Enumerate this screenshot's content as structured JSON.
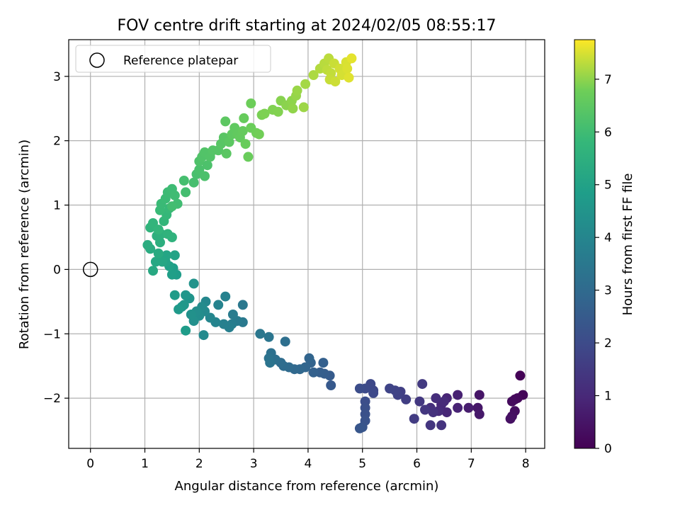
{
  "chart_data": {
    "type": "scatter",
    "title": "FOV centre drift starting at 2024/02/05 08:55:17",
    "xlabel": "Angular distance from reference (arcmin)",
    "ylabel": "Rotation from reference (arcmin)",
    "xlim": [
      -0.4,
      8.35
    ],
    "ylim": [
      -2.78,
      3.57
    ],
    "xticks": [
      "0",
      "1",
      "2",
      "3",
      "4",
      "5",
      "6",
      "7",
      "8"
    ],
    "yticks": [
      "−2",
      "−1",
      "0",
      "1",
      "2",
      "3"
    ],
    "grid": true,
    "legend": {
      "position": "top-left",
      "entries": [
        "Reference platepar"
      ]
    },
    "reference_point": {
      "x": 0,
      "y": 0
    },
    "colorbar": {
      "label": "Hours from first FF file",
      "range": [
        0,
        7.75
      ],
      "ticks": [
        "0",
        "1",
        "2",
        "3",
        "4",
        "5",
        "6",
        "7"
      ],
      "colormap": "viridis"
    },
    "points": [
      {
        "x": 7.9,
        "y": -1.65,
        "t": 0.05
      },
      {
        "x": 7.95,
        "y": -1.95,
        "t": 0.1
      },
      {
        "x": 7.85,
        "y": -2.0,
        "t": 0.15
      },
      {
        "x": 7.8,
        "y": -2.02,
        "t": 0.2
      },
      {
        "x": 7.75,
        "y": -2.05,
        "t": 0.25
      },
      {
        "x": 7.8,
        "y": -2.2,
        "t": 0.3
      },
      {
        "x": 7.75,
        "y": -2.28,
        "t": 0.35
      },
      {
        "x": 7.72,
        "y": -2.32,
        "t": 0.4
      },
      {
        "x": 7.15,
        "y": -1.95,
        "t": 0.5
      },
      {
        "x": 7.12,
        "y": -2.15,
        "t": 0.55
      },
      {
        "x": 7.15,
        "y": -2.25,
        "t": 0.6
      },
      {
        "x": 6.95,
        "y": -2.15,
        "t": 0.7
      },
      {
        "x": 6.75,
        "y": -1.95,
        "t": 0.8
      },
      {
        "x": 6.75,
        "y": -2.15,
        "t": 0.85
      },
      {
        "x": 6.55,
        "y": -2.0,
        "t": 0.9
      },
      {
        "x": 6.55,
        "y": -2.22,
        "t": 0.95
      },
      {
        "x": 6.45,
        "y": -2.1,
        "t": 1.0
      },
      {
        "x": 6.5,
        "y": -2.05,
        "t": 1.05
      },
      {
        "x": 6.4,
        "y": -2.2,
        "t": 1.1
      },
      {
        "x": 6.35,
        "y": -2.0,
        "t": 1.15
      },
      {
        "x": 6.25,
        "y": -2.15,
        "t": 1.2
      },
      {
        "x": 6.3,
        "y": -2.22,
        "t": 1.25
      },
      {
        "x": 6.45,
        "y": -2.42,
        "t": 1.3
      },
      {
        "x": 6.25,
        "y": -2.42,
        "t": 1.35
      },
      {
        "x": 6.15,
        "y": -2.18,
        "t": 1.4
      },
      {
        "x": 6.05,
        "y": -2.05,
        "t": 1.45
      },
      {
        "x": 6.1,
        "y": -1.78,
        "t": 1.5
      },
      {
        "x": 5.95,
        "y": -2.32,
        "t": 1.55
      },
      {
        "x": 5.8,
        "y": -2.02,
        "t": 1.6
      },
      {
        "x": 5.7,
        "y": -1.9,
        "t": 1.65
      },
      {
        "x": 5.65,
        "y": -1.95,
        "t": 1.7
      },
      {
        "x": 5.6,
        "y": -1.88,
        "t": 1.75
      },
      {
        "x": 5.5,
        "y": -1.85,
        "t": 1.8
      },
      {
        "x": 5.2,
        "y": -1.88,
        "t": 1.85
      },
      {
        "x": 5.15,
        "y": -1.78,
        "t": 1.9
      },
      {
        "x": 5.2,
        "y": -1.92,
        "t": 1.95
      },
      {
        "x": 5.05,
        "y": -1.85,
        "t": 2.0
      },
      {
        "x": 4.95,
        "y": -1.85,
        "t": 2.05
      },
      {
        "x": 5.05,
        "y": -2.05,
        "t": 2.1
      },
      {
        "x": 5.05,
        "y": -2.15,
        "t": 2.15
      },
      {
        "x": 5.05,
        "y": -2.25,
        "t": 2.2
      },
      {
        "x": 5.05,
        "y": -2.35,
        "t": 2.25
      },
      {
        "x": 5.0,
        "y": -2.45,
        "t": 2.3
      },
      {
        "x": 4.95,
        "y": -2.47,
        "t": 2.35
      },
      {
        "x": 4.42,
        "y": -1.8,
        "t": 2.45
      },
      {
        "x": 4.4,
        "y": -1.65,
        "t": 2.5
      },
      {
        "x": 4.3,
        "y": -1.62,
        "t": 2.55
      },
      {
        "x": 4.22,
        "y": -1.6,
        "t": 2.6
      },
      {
        "x": 4.28,
        "y": -1.45,
        "t": 2.65
      },
      {
        "x": 4.1,
        "y": -1.6,
        "t": 2.7
      },
      {
        "x": 4.05,
        "y": -1.45,
        "t": 2.75
      },
      {
        "x": 4.02,
        "y": -1.38,
        "t": 2.8
      },
      {
        "x": 3.95,
        "y": -1.52,
        "t": 2.85
      },
      {
        "x": 3.85,
        "y": -1.55,
        "t": 2.9
      },
      {
        "x": 3.75,
        "y": -1.55,
        "t": 2.95
      },
      {
        "x": 3.65,
        "y": -1.52,
        "t": 3.0
      },
      {
        "x": 3.55,
        "y": -1.5,
        "t": 3.05
      },
      {
        "x": 3.5,
        "y": -1.45,
        "t": 3.1
      },
      {
        "x": 3.58,
        "y": -1.12,
        "t": 3.15
      },
      {
        "x": 3.4,
        "y": -1.4,
        "t": 3.2
      },
      {
        "x": 3.32,
        "y": -1.3,
        "t": 3.25
      },
      {
        "x": 3.28,
        "y": -1.38,
        "t": 3.3
      },
      {
        "x": 3.3,
        "y": -1.45,
        "t": 3.35
      },
      {
        "x": 3.28,
        "y": -1.05,
        "t": 3.4
      },
      {
        "x": 3.12,
        "y": -1.0,
        "t": 3.45
      },
      {
        "x": 2.8,
        "y": -0.55,
        "t": 3.5
      },
      {
        "x": 2.8,
        "y": -0.82,
        "t": 3.55
      },
      {
        "x": 2.7,
        "y": -0.8,
        "t": 3.6
      },
      {
        "x": 2.62,
        "y": -0.7,
        "t": 3.65
      },
      {
        "x": 2.6,
        "y": -0.85,
        "t": 3.7
      },
      {
        "x": 2.55,
        "y": -0.9,
        "t": 3.75
      },
      {
        "x": 2.45,
        "y": -0.85,
        "t": 3.8
      },
      {
        "x": 2.48,
        "y": -0.42,
        "t": 3.85
      },
      {
        "x": 2.35,
        "y": -0.55,
        "t": 3.9
      },
      {
        "x": 2.3,
        "y": -0.82,
        "t": 3.95
      },
      {
        "x": 2.2,
        "y": -0.75,
        "t": 4.0
      },
      {
        "x": 2.12,
        "y": -0.5,
        "t": 4.05
      },
      {
        "x": 2.1,
        "y": -0.65,
        "t": 4.1
      },
      {
        "x": 2.08,
        "y": -1.02,
        "t": 4.15
      },
      {
        "x": 2.05,
        "y": -0.58,
        "t": 4.2
      },
      {
        "x": 2.0,
        "y": -0.72,
        "t": 4.25
      },
      {
        "x": 1.95,
        "y": -0.65,
        "t": 4.3
      },
      {
        "x": 1.9,
        "y": -0.8,
        "t": 4.35
      },
      {
        "x": 1.85,
        "y": -0.7,
        "t": 4.4
      },
      {
        "x": 1.9,
        "y": -0.22,
        "t": 4.45
      },
      {
        "x": 1.82,
        "y": -0.45,
        "t": 4.5
      },
      {
        "x": 1.75,
        "y": -0.4,
        "t": 4.55
      },
      {
        "x": 1.72,
        "y": -0.55,
        "t": 4.6
      },
      {
        "x": 1.68,
        "y": -0.58,
        "t": 4.65
      },
      {
        "x": 1.62,
        "y": -0.62,
        "t": 4.7
      },
      {
        "x": 1.55,
        "y": -0.4,
        "t": 4.75
      },
      {
        "x": 1.75,
        "y": -0.95,
        "t": 4.78
      },
      {
        "x": 1.58,
        "y": -0.08,
        "t": 4.8
      },
      {
        "x": 1.52,
        "y": 0.02,
        "t": 4.85
      },
      {
        "x": 1.5,
        "y": -0.08,
        "t": 4.9
      },
      {
        "x": 1.45,
        "y": 0.05,
        "t": 4.95
      },
      {
        "x": 1.55,
        "y": 0.22,
        "t": 5.0
      },
      {
        "x": 1.38,
        "y": 0.12,
        "t": 5.05
      },
      {
        "x": 1.4,
        "y": 0.22,
        "t": 5.1
      },
      {
        "x": 1.32,
        "y": 0.12,
        "t": 5.15
      },
      {
        "x": 1.2,
        "y": 0.12,
        "t": 5.2
      },
      {
        "x": 1.15,
        "y": -0.02,
        "t": 5.25
      },
      {
        "x": 1.25,
        "y": 0.25,
        "t": 5.3
      },
      {
        "x": 1.1,
        "y": 0.32,
        "t": 5.35
      },
      {
        "x": 1.05,
        "y": 0.38,
        "t": 5.4
      },
      {
        "x": 1.28,
        "y": 0.42,
        "t": 5.45
      },
      {
        "x": 1.22,
        "y": 0.52,
        "t": 5.5
      },
      {
        "x": 1.3,
        "y": 0.55,
        "t": 5.55
      },
      {
        "x": 1.5,
        "y": 0.5,
        "t": 5.6
      },
      {
        "x": 1.42,
        "y": 0.55,
        "t": 5.62
      },
      {
        "x": 1.1,
        "y": 0.65,
        "t": 5.65
      },
      {
        "x": 1.15,
        "y": 0.72,
        "t": 5.7
      },
      {
        "x": 1.25,
        "y": 0.62,
        "t": 5.72
      },
      {
        "x": 1.35,
        "y": 0.75,
        "t": 5.75
      },
      {
        "x": 1.4,
        "y": 0.85,
        "t": 5.8
      },
      {
        "x": 1.45,
        "y": 0.95,
        "t": 5.85
      },
      {
        "x": 1.28,
        "y": 0.92,
        "t": 5.88
      },
      {
        "x": 1.3,
        "y": 1.02,
        "t": 5.9
      },
      {
        "x": 1.38,
        "y": 1.1,
        "t": 5.92
      },
      {
        "x": 1.42,
        "y": 1.2,
        "t": 5.95
      },
      {
        "x": 1.5,
        "y": 1.25,
        "t": 5.97
      },
      {
        "x": 1.55,
        "y": 1.15,
        "t": 6.0
      },
      {
        "x": 1.6,
        "y": 1.02,
        "t": 6.02
      },
      {
        "x": 1.5,
        "y": 0.98,
        "t": 6.05
      },
      {
        "x": 1.75,
        "y": 1.2,
        "t": 6.08
      },
      {
        "x": 1.72,
        "y": 1.38,
        "t": 6.1
      },
      {
        "x": 1.9,
        "y": 1.35,
        "t": 6.12
      },
      {
        "x": 1.95,
        "y": 1.48,
        "t": 6.15
      },
      {
        "x": 2.0,
        "y": 1.55,
        "t": 6.18
      },
      {
        "x": 2.1,
        "y": 1.45,
        "t": 6.2
      },
      {
        "x": 2.15,
        "y": 1.62,
        "t": 6.22
      },
      {
        "x": 2.0,
        "y": 1.68,
        "t": 6.25
      },
      {
        "x": 2.05,
        "y": 1.75,
        "t": 6.28
      },
      {
        "x": 2.1,
        "y": 1.82,
        "t": 6.3
      },
      {
        "x": 2.2,
        "y": 1.75,
        "t": 6.32
      },
      {
        "x": 2.25,
        "y": 1.85,
        "t": 6.35
      },
      {
        "x": 2.35,
        "y": 1.85,
        "t": 6.38
      },
      {
        "x": 2.4,
        "y": 1.95,
        "t": 6.4
      },
      {
        "x": 2.45,
        "y": 2.05,
        "t": 6.42
      },
      {
        "x": 2.5,
        "y": 1.8,
        "t": 6.45
      },
      {
        "x": 2.55,
        "y": 1.98,
        "t": 6.48
      },
      {
        "x": 2.48,
        "y": 2.3,
        "t": 6.5
      },
      {
        "x": 2.6,
        "y": 2.1,
        "t": 6.52
      },
      {
        "x": 2.65,
        "y": 2.2,
        "t": 6.55
      },
      {
        "x": 2.7,
        "y": 2.1,
        "t": 6.58
      },
      {
        "x": 2.75,
        "y": 2.05,
        "t": 6.6
      },
      {
        "x": 2.8,
        "y": 2.15,
        "t": 6.62
      },
      {
        "x": 2.82,
        "y": 2.35,
        "t": 6.65
      },
      {
        "x": 2.85,
        "y": 1.95,
        "t": 6.68
      },
      {
        "x": 2.9,
        "y": 1.75,
        "t": 6.7
      },
      {
        "x": 2.95,
        "y": 2.2,
        "t": 6.72
      },
      {
        "x": 2.95,
        "y": 2.58,
        "t": 6.75
      },
      {
        "x": 3.05,
        "y": 2.12,
        "t": 6.78
      },
      {
        "x": 3.1,
        "y": 2.1,
        "t": 6.8
      },
      {
        "x": 3.15,
        "y": 2.4,
        "t": 6.85
      },
      {
        "x": 3.2,
        "y": 2.42,
        "t": 6.88
      },
      {
        "x": 3.35,
        "y": 2.48,
        "t": 6.9
      },
      {
        "x": 3.45,
        "y": 2.45,
        "t": 6.92
      },
      {
        "x": 3.5,
        "y": 2.62,
        "t": 6.95
      },
      {
        "x": 3.6,
        "y": 2.55,
        "t": 6.98
      },
      {
        "x": 3.7,
        "y": 2.62,
        "t": 7.0
      },
      {
        "x": 3.72,
        "y": 2.5,
        "t": 7.02
      },
      {
        "x": 3.78,
        "y": 2.7,
        "t": 7.05
      },
      {
        "x": 3.8,
        "y": 2.78,
        "t": 7.08
      },
      {
        "x": 3.92,
        "y": 2.52,
        "t": 7.1
      },
      {
        "x": 3.95,
        "y": 2.88,
        "t": 7.15
      },
      {
        "x": 4.1,
        "y": 3.02,
        "t": 7.2
      },
      {
        "x": 4.22,
        "y": 3.12,
        "t": 7.25
      },
      {
        "x": 4.3,
        "y": 3.2,
        "t": 7.28
      },
      {
        "x": 4.38,
        "y": 3.28,
        "t": 7.3
      },
      {
        "x": 4.35,
        "y": 3.1,
        "t": 7.32
      },
      {
        "x": 4.42,
        "y": 3.05,
        "t": 7.35
      },
      {
        "x": 4.4,
        "y": 2.95,
        "t": 7.38
      },
      {
        "x": 4.48,
        "y": 3.2,
        "t": 7.4
      },
      {
        "x": 4.5,
        "y": 2.92,
        "t": 7.42
      },
      {
        "x": 4.58,
        "y": 3.12,
        "t": 7.45
      },
      {
        "x": 4.62,
        "y": 3.02,
        "t": 7.48
      },
      {
        "x": 4.7,
        "y": 3.22,
        "t": 7.5
      },
      {
        "x": 4.72,
        "y": 3.12,
        "t": 7.52
      },
      {
        "x": 4.75,
        "y": 2.98,
        "t": 7.55
      },
      {
        "x": 4.8,
        "y": 3.28,
        "t": 7.58
      }
    ]
  }
}
